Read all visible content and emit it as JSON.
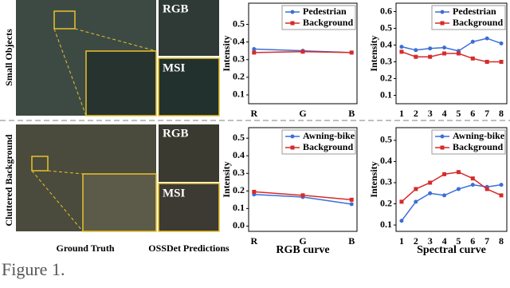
{
  "figure": {
    "row_labels": [
      "Small Objects",
      "Cluttered Background"
    ],
    "column_labels": [
      "Ground Truth",
      "OSSDet Predictions"
    ],
    "inset_labels": [
      "RGB",
      "MSI",
      "RGB",
      "MSI"
    ],
    "caption": "Figure 1."
  },
  "chart_data": [
    {
      "type": "line",
      "ylabel": "Intensity",
      "categories": [
        "R",
        "G",
        "B"
      ],
      "ylim": [
        0.05,
        0.62
      ],
      "yticks": [
        0.1,
        0.2,
        0.3,
        0.4,
        0.5
      ],
      "legend": "top-right",
      "series": [
        {
          "name": "Pedestrian",
          "color": "#3b6fd6",
          "values": [
            0.36,
            0.35,
            0.34
          ]
        },
        {
          "name": "Background",
          "color": "#d62b2b",
          "values": [
            0.34,
            0.345,
            0.34
          ]
        }
      ]
    },
    {
      "type": "line",
      "ylabel": "Intensity",
      "categories": [
        "1",
        "2",
        "3",
        "4",
        "5",
        "6",
        "7",
        "8"
      ],
      "ylim": [
        0.05,
        0.65
      ],
      "yticks": [
        0.1,
        0.2,
        0.3,
        0.4,
        0.5,
        0.6
      ],
      "legend": "top-right",
      "series": [
        {
          "name": "Pedestrian",
          "color": "#3b6fd6",
          "values": [
            0.39,
            0.37,
            0.38,
            0.385,
            0.365,
            0.42,
            0.44,
            0.41
          ]
        },
        {
          "name": "Background",
          "color": "#d62b2b",
          "values": [
            0.36,
            0.33,
            0.33,
            0.35,
            0.35,
            0.32,
            0.3,
            0.3
          ]
        }
      ]
    },
    {
      "type": "line",
      "ylabel": "Intensity",
      "xlabel": "RGB curve",
      "categories": [
        "R",
        "G",
        "B"
      ],
      "ylim": [
        -0.03,
        0.56
      ],
      "yticks": [
        {
          "value": 0,
          "label": "0.0"
        },
        0.1,
        0.2,
        0.3,
        0.4,
        0.5
      ],
      "legend": "top-right",
      "series": [
        {
          "name": "Awning-bike",
          "color": "#3b6fd6",
          "values": [
            0.18,
            0.165,
            0.125
          ]
        },
        {
          "name": "Background",
          "color": "#d62b2b",
          "values": [
            0.195,
            0.175,
            0.15
          ]
        }
      ]
    },
    {
      "type": "line",
      "ylabel": "Intensity",
      "xlabel": "Spectral curve",
      "categories": [
        "1",
        "2",
        "3",
        "4",
        "5",
        "6",
        "7",
        "8"
      ],
      "ylim": [
        0.07,
        0.56
      ],
      "yticks": [
        0.1,
        0.2,
        0.3,
        0.4,
        0.5
      ],
      "legend": "top-right",
      "series": [
        {
          "name": "Awning-bike",
          "color": "#3b6fd6",
          "values": [
            0.12,
            0.21,
            0.25,
            0.24,
            0.27,
            0.29,
            0.28,
            0.29
          ]
        },
        {
          "name": "Background",
          "color": "#d62b2b",
          "values": [
            0.21,
            0.27,
            0.3,
            0.34,
            0.35,
            0.32,
            0.27,
            0.24
          ]
        }
      ]
    }
  ]
}
